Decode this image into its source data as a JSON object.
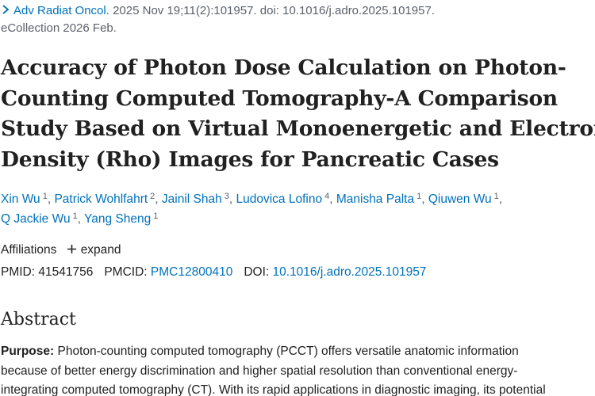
{
  "citation": {
    "journal": "Adv Radiat Oncol.",
    "details": " 2025 Nov 19;11(2):101957. doi: 10.1016/j.adro.2025.101957.",
    "ecollection": "eCollection 2026 Feb."
  },
  "title_lines": [
    "Accuracy of Photon Dose Calculation on Photon-",
    "Counting Computed Tomography-A Comparison",
    "Study Based on Virtual Monoenergetic and Electron",
    "Density (Rho) Images for Pancreatic Cases"
  ],
  "authors": [
    {
      "name": "Xin Wu",
      "aff": "1"
    },
    {
      "name": "Patrick Wohlfahrt",
      "aff": "2"
    },
    {
      "name": "Jainil Shah",
      "aff": "3"
    },
    {
      "name": "Ludovica Lofino",
      "aff": "4"
    },
    {
      "name": "Manisha Palta",
      "aff": "1"
    },
    {
      "name": "Qiuwen Wu",
      "aff": "1"
    },
    {
      "name": "Q Jackie Wu",
      "aff": "1"
    },
    {
      "name": "Yang Sheng",
      "aff": "1"
    }
  ],
  "affiliations": {
    "label": "Affiliations",
    "expand": "expand"
  },
  "ids": {
    "pmid_label": "PMID:",
    "pmid": "41541756",
    "pmcid_label": "PMCID:",
    "pmcid": "PMC12800410",
    "doi_label": "DOI:",
    "doi": "10.1016/j.adro.2025.101957"
  },
  "abstract": {
    "heading": "Abstract",
    "purpose_label": "Purpose:",
    "lines": [
      " Photon-counting computed tomography (PCCT) offers versatile anatomic information",
      "because of better energy discrimination and higher spatial resolution than conventional energy-",
      "integrating computed tomography (CT). With its rapid applications in diagnostic imaging, its potential"
    ]
  },
  "colors": {
    "link": "#0071bc",
    "text": "#212121",
    "muted": "#5b616b"
  },
  "icons": [
    "chevron-right-icon",
    "plus-icon"
  ]
}
